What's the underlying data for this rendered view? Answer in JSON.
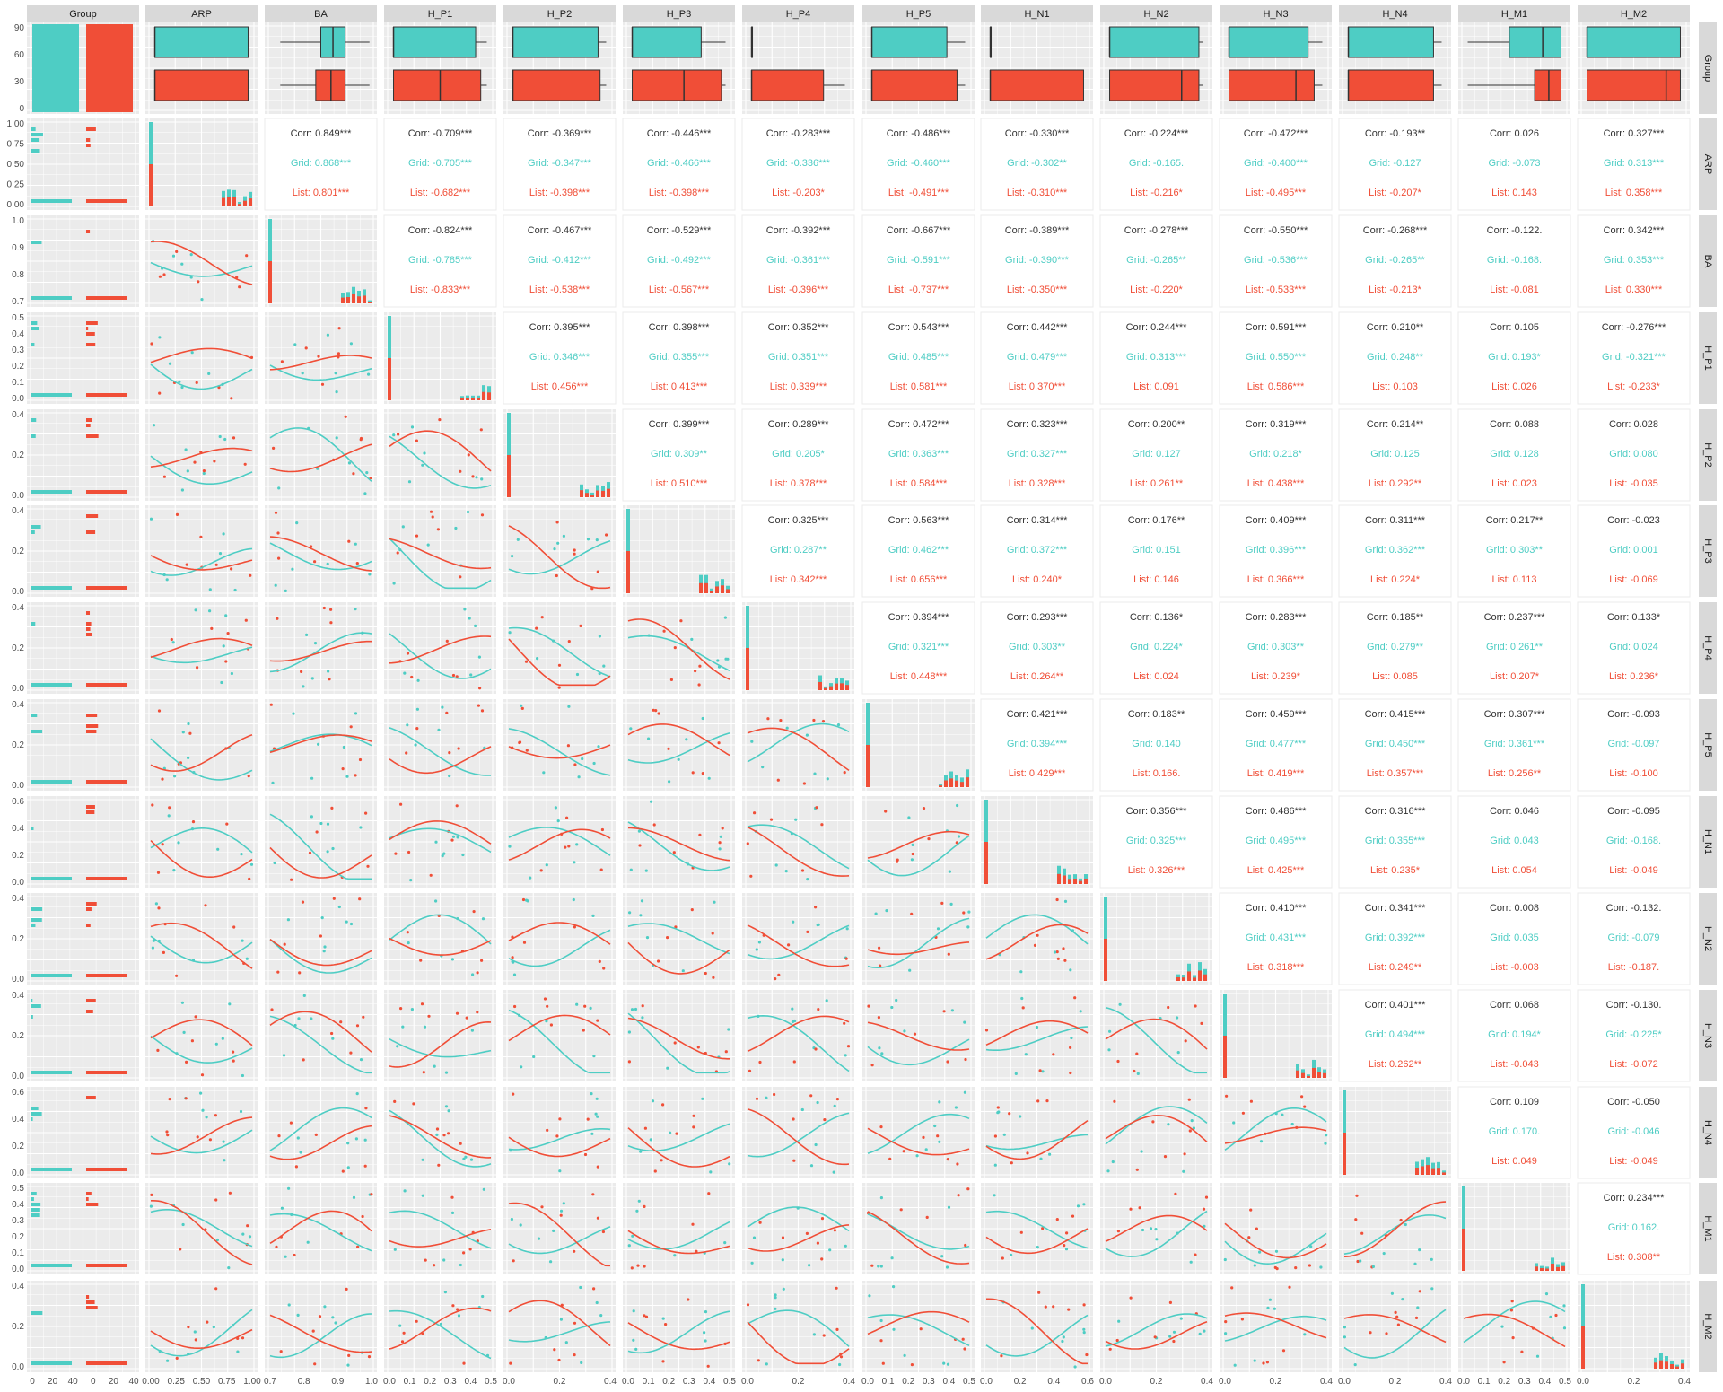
{
  "chart_data": {
    "type": "scatter-matrix",
    "variables": [
      "Group",
      "ARP",
      "BA",
      "H_P1",
      "H_P2",
      "H_P3",
      "H_P4",
      "H_P5",
      "H_N1",
      "H_N2",
      "H_N3",
      "H_N4",
      "H_M1",
      "H_M2"
    ],
    "groups": [
      {
        "name": "Grid",
        "color": "#4ECDC4"
      },
      {
        "name": "List",
        "color": "#F04E37"
      }
    ],
    "overall_label": "Corr",
    "colors": {
      "panel_bg": "#EBEBEB",
      "grid": "#FFFFFF",
      "strip_bg": "#D9D9D9",
      "text": "#333333"
    },
    "column_ticks": [
      [
        "0",
        "20",
        "40",
        "0",
        "20",
        "40"
      ],
      [
        "0.00",
        "0.25",
        "0.50",
        "0.75",
        "1.00"
      ],
      [
        "0.7",
        "0.8",
        "0.9",
        "1.0"
      ],
      [
        "0.0",
        "0.1",
        "0.2",
        "0.3",
        "0.4",
        "0.5"
      ],
      [
        "0.0",
        "0.2",
        "0.4"
      ],
      [
        "0.0",
        "0.1",
        "0.2",
        "0.3",
        "0.4",
        "0.5"
      ],
      [
        "0.0",
        "0.2",
        "0.4"
      ],
      [
        "0.0",
        "0.1",
        "0.2",
        "0.3",
        "0.4",
        "0.5"
      ],
      [
        "0.0",
        "0.2",
        "0.4",
        "0.6"
      ],
      [
        "0.0",
        "0.2",
        "0.4"
      ],
      [
        "0.0",
        "0.2",
        "0.4"
      ],
      [
        "0.0",
        "0.2",
        "0.4"
      ],
      [
        "0.0",
        "0.1",
        "0.2",
        "0.3",
        "0.4",
        "0.5"
      ],
      [
        "0.0",
        "0.2",
        "0.4"
      ]
    ],
    "row_ticks": [
      [
        "0",
        "30",
        "60",
        "90"
      ],
      [
        "0.00",
        "0.25",
        "0.50",
        "0.75",
        "1.00"
      ],
      [
        "0.7",
        "0.8",
        "0.9",
        "1.0"
      ],
      [
        "0.0",
        "0.1",
        "0.2",
        "0.3",
        "0.4",
        "0.5"
      ],
      [
        "0.0",
        "0.2",
        "0.4"
      ],
      [
        "0.0",
        "0.2",
        "0.4"
      ],
      [
        "0.0",
        "0.2",
        "0.4"
      ],
      [
        "0.0",
        "0.2",
        "0.4"
      ],
      [
        "0.0",
        "0.2",
        "0.4",
        "0.6"
      ],
      [
        "0.0",
        "0.2",
        "0.4"
      ],
      [
        "0.0",
        "0.2",
        "0.4"
      ],
      [
        "0.0",
        "0.2",
        "0.4",
        "0.6"
      ],
      [
        "0.0",
        "0.1",
        "0.2",
        "0.3",
        "0.4",
        "0.5"
      ],
      [
        "0.0",
        "0.2",
        "0.4"
      ]
    ],
    "correlations": [
      {
        "row": "ARP",
        "col": "BA",
        "Corr": "0.849***",
        "Grid": "0.868***",
        "List": "0.801***"
      },
      {
        "row": "ARP",
        "col": "H_P1",
        "Corr": "-0.709***",
        "Grid": "-0.705***",
        "List": "-0.682***"
      },
      {
        "row": "ARP",
        "col": "H_P2",
        "Corr": "-0.369***",
        "Grid": "-0.347***",
        "List": "-0.398***"
      },
      {
        "row": "ARP",
        "col": "H_P3",
        "Corr": "-0.446***",
        "Grid": "-0.466***",
        "List": "-0.398***"
      },
      {
        "row": "ARP",
        "col": "H_P4",
        "Corr": "-0.283***",
        "Grid": "-0.336***",
        "List": "-0.203*"
      },
      {
        "row": "ARP",
        "col": "H_P5",
        "Corr": "-0.486***",
        "Grid": "-0.460***",
        "List": "-0.491***"
      },
      {
        "row": "ARP",
        "col": "H_N1",
        "Corr": "-0.330***",
        "Grid": "-0.302**",
        "List": "-0.310***"
      },
      {
        "row": "ARP",
        "col": "H_N2",
        "Corr": "-0.224***",
        "Grid": "-0.165.",
        "List": "-0.216*"
      },
      {
        "row": "ARP",
        "col": "H_N3",
        "Corr": "-0.472***",
        "Grid": "-0.400***",
        "List": "-0.495***"
      },
      {
        "row": "ARP",
        "col": "H_N4",
        "Corr": "-0.193**",
        "Grid": "-0.127",
        "List": "-0.207*"
      },
      {
        "row": "ARP",
        "col": "H_M1",
        "Corr": "0.026",
        "Grid": "-0.073",
        "List": "0.143"
      },
      {
        "row": "ARP",
        "col": "H_M2",
        "Corr": "0.327***",
        "Grid": "0.313***",
        "List": "0.358***"
      },
      {
        "row": "BA",
        "col": "H_P1",
        "Corr": "-0.824***",
        "Grid": "-0.785***",
        "List": "-0.833***"
      },
      {
        "row": "BA",
        "col": "H_P2",
        "Corr": "-0.467***",
        "Grid": "-0.412***",
        "List": "-0.538***"
      },
      {
        "row": "BA",
        "col": "H_P3",
        "Corr": "-0.529***",
        "Grid": "-0.492***",
        "List": "-0.567***"
      },
      {
        "row": "BA",
        "col": "H_P4",
        "Corr": "-0.392***",
        "Grid": "-0.361***",
        "List": "-0.396***"
      },
      {
        "row": "BA",
        "col": "H_P5",
        "Corr": "-0.667***",
        "Grid": "-0.591***",
        "List": "-0.737***"
      },
      {
        "row": "BA",
        "col": "H_N1",
        "Corr": "-0.389***",
        "Grid": "-0.390***",
        "List": "-0.350***"
      },
      {
        "row": "BA",
        "col": "H_N2",
        "Corr": "-0.278***",
        "Grid": "-0.265**",
        "List": "-0.220*"
      },
      {
        "row": "BA",
        "col": "H_N3",
        "Corr": "-0.550***",
        "Grid": "-0.536***",
        "List": "-0.533***"
      },
      {
        "row": "BA",
        "col": "H_N4",
        "Corr": "-0.268***",
        "Grid": "-0.265**",
        "List": "-0.213*"
      },
      {
        "row": "BA",
        "col": "H_M1",
        "Corr": "-0.122.",
        "Grid": "-0.168.",
        "List": "-0.081"
      },
      {
        "row": "BA",
        "col": "H_M2",
        "Corr": "0.342***",
        "Grid": "0.353***",
        "List": "0.330***"
      },
      {
        "row": "H_P1",
        "col": "H_P2",
        "Corr": "0.395***",
        "Grid": "0.346***",
        "List": "0.456***"
      },
      {
        "row": "H_P1",
        "col": "H_P3",
        "Corr": "0.398***",
        "Grid": "0.355***",
        "List": "0.413***"
      },
      {
        "row": "H_P1",
        "col": "H_P4",
        "Corr": "0.352***",
        "Grid": "0.351***",
        "List": "0.339***"
      },
      {
        "row": "H_P1",
        "col": "H_P5",
        "Corr": "0.543***",
        "Grid": "0.485***",
        "List": "0.581***"
      },
      {
        "row": "H_P1",
        "col": "H_N1",
        "Corr": "0.442***",
        "Grid": "0.479***",
        "List": "0.370***"
      },
      {
        "row": "H_P1",
        "col": "H_N2",
        "Corr": "0.244***",
        "Grid": "0.313***",
        "List": "0.091"
      },
      {
        "row": "H_P1",
        "col": "H_N3",
        "Corr": "0.591***",
        "Grid": "0.550***",
        "List": "0.586***"
      },
      {
        "row": "H_P1",
        "col": "H_N4",
        "Corr": "0.210**",
        "Grid": "0.248**",
        "List": "0.103"
      },
      {
        "row": "H_P1",
        "col": "H_M1",
        "Corr": "0.105",
        "Grid": "0.193*",
        "List": "0.026"
      },
      {
        "row": "H_P1",
        "col": "H_M2",
        "Corr": "-0.276***",
        "Grid": "-0.321***",
        "List": "-0.233*"
      },
      {
        "row": "H_P2",
        "col": "H_P3",
        "Corr": "0.399***",
        "Grid": "0.309**",
        "List": "0.510***"
      },
      {
        "row": "H_P2",
        "col": "H_P4",
        "Corr": "0.289***",
        "Grid": "0.205*",
        "List": "0.378***"
      },
      {
        "row": "H_P2",
        "col": "H_P5",
        "Corr": "0.472***",
        "Grid": "0.363***",
        "List": "0.584***"
      },
      {
        "row": "H_P2",
        "col": "H_N1",
        "Corr": "0.323***",
        "Grid": "0.327***",
        "List": "0.328***"
      },
      {
        "row": "H_P2",
        "col": "H_N2",
        "Corr": "0.200**",
        "Grid": "0.127",
        "List": "0.261**"
      },
      {
        "row": "H_P2",
        "col": "H_N3",
        "Corr": "0.319***",
        "Grid": "0.218*",
        "List": "0.438***"
      },
      {
        "row": "H_P2",
        "col": "H_N4",
        "Corr": "0.214**",
        "Grid": "0.125",
        "List": "0.292**"
      },
      {
        "row": "H_P2",
        "col": "H_M1",
        "Corr": "0.088",
        "Grid": "0.128",
        "List": "0.023"
      },
      {
        "row": "H_P2",
        "col": "H_M2",
        "Corr": "0.028",
        "Grid": "0.080",
        "List": "-0.035"
      },
      {
        "row": "H_P3",
        "col": "H_P4",
        "Corr": "0.325***",
        "Grid": "0.287**",
        "List": "0.342***"
      },
      {
        "row": "H_P3",
        "col": "H_P5",
        "Corr": "0.563***",
        "Grid": "0.462***",
        "List": "0.656***"
      },
      {
        "row": "H_P3",
        "col": "H_N1",
        "Corr": "0.314***",
        "Grid": "0.372***",
        "List": "0.240*"
      },
      {
        "row": "H_P3",
        "col": "H_N2",
        "Corr": "0.176**",
        "Grid": "0.151",
        "List": "0.146"
      },
      {
        "row": "H_P3",
        "col": "H_N3",
        "Corr": "0.409***",
        "Grid": "0.396***",
        "List": "0.366***"
      },
      {
        "row": "H_P3",
        "col": "H_N4",
        "Corr": "0.311***",
        "Grid": "0.362***",
        "List": "0.224*"
      },
      {
        "row": "H_P3",
        "col": "H_M1",
        "Corr": "0.217**",
        "Grid": "0.303**",
        "List": "0.113"
      },
      {
        "row": "H_P3",
        "col": "H_M2",
        "Corr": "-0.023",
        "Grid": "0.001",
        "List": "-0.069"
      },
      {
        "row": "H_P4",
        "col": "H_P5",
        "Corr": "0.394***",
        "Grid": "0.321***",
        "List": "0.448***"
      },
      {
        "row": "H_P4",
        "col": "H_N1",
        "Corr": "0.293***",
        "Grid": "0.303**",
        "List": "0.264**"
      },
      {
        "row": "H_P4",
        "col": "H_N2",
        "Corr": "0.136*",
        "Grid": "0.224*",
        "List": "0.024"
      },
      {
        "row": "H_P4",
        "col": "H_N3",
        "Corr": "0.283***",
        "Grid": "0.303**",
        "List": "0.239*"
      },
      {
        "row": "H_P4",
        "col": "H_N4",
        "Corr": "0.185**",
        "Grid": "0.279**",
        "List": "0.085"
      },
      {
        "row": "H_P4",
        "col": "H_M1",
        "Corr": "0.237***",
        "Grid": "0.261**",
        "List": "0.207*"
      },
      {
        "row": "H_P4",
        "col": "H_M2",
        "Corr": "0.133*",
        "Grid": "0.024",
        "List": "0.236*"
      },
      {
        "row": "H_P5",
        "col": "H_N1",
        "Corr": "0.421***",
        "Grid": "0.394***",
        "List": "0.429***"
      },
      {
        "row": "H_P5",
        "col": "H_N2",
        "Corr": "0.183**",
        "Grid": "0.140",
        "List": "0.166."
      },
      {
        "row": "H_P5",
        "col": "H_N3",
        "Corr": "0.459***",
        "Grid": "0.477***",
        "List": "0.419***"
      },
      {
        "row": "H_P5",
        "col": "H_N4",
        "Corr": "0.415***",
        "Grid": "0.450***",
        "List": "0.357***"
      },
      {
        "row": "H_P5",
        "col": "H_M1",
        "Corr": "0.307***",
        "Grid": "0.361***",
        "List": "0.256**"
      },
      {
        "row": "H_P5",
        "col": "H_M2",
        "Corr": "-0.093",
        "Grid": "-0.097",
        "List": "-0.100"
      },
      {
        "row": "H_N1",
        "col": "H_N2",
        "Corr": "0.356***",
        "Grid": "0.325***",
        "List": "0.326***"
      },
      {
        "row": "H_N1",
        "col": "H_N3",
        "Corr": "0.486***",
        "Grid": "0.495***",
        "List": "0.425***"
      },
      {
        "row": "H_N1",
        "col": "H_N4",
        "Corr": "0.316***",
        "Grid": "0.355***",
        "List": "0.235*"
      },
      {
        "row": "H_N1",
        "col": "H_M1",
        "Corr": "0.046",
        "Grid": "0.043",
        "List": "0.054"
      },
      {
        "row": "H_N1",
        "col": "H_M2",
        "Corr": "-0.095",
        "Grid": "-0.168.",
        "List": "-0.049"
      },
      {
        "row": "H_N2",
        "col": "H_N3",
        "Corr": "0.410***",
        "Grid": "0.431***",
        "List": "0.318***"
      },
      {
        "row": "H_N2",
        "col": "H_N4",
        "Corr": "0.341***",
        "Grid": "0.392***",
        "List": "0.249**"
      },
      {
        "row": "H_N2",
        "col": "H_M1",
        "Corr": "0.008",
        "Grid": "0.035",
        "List": "-0.003"
      },
      {
        "row": "H_N2",
        "col": "H_M2",
        "Corr": "-0.132.",
        "Grid": "-0.079",
        "List": "-0.187."
      },
      {
        "row": "H_N3",
        "col": "H_N4",
        "Corr": "0.401***",
        "Grid": "0.494***",
        "List": "0.262**"
      },
      {
        "row": "H_N3",
        "col": "H_M1",
        "Corr": "0.068",
        "Grid": "0.194*",
        "List": "-0.043"
      },
      {
        "row": "H_N3",
        "col": "H_M2",
        "Corr": "-0.130.",
        "Grid": "-0.225*",
        "List": "-0.072"
      },
      {
        "row": "H_N4",
        "col": "H_M1",
        "Corr": "0.109",
        "Grid": "0.170.",
        "List": "0.049"
      },
      {
        "row": "H_N4",
        "col": "H_M2",
        "Corr": "-0.050",
        "Grid": "-0.046",
        "List": "-0.049"
      },
      {
        "row": "H_M1",
        "col": "H_M2",
        "Corr": "0.234***",
        "Grid": "0.162.",
        "List": "0.308**"
      }
    ],
    "group_boxplots": [
      {
        "var": "ARP",
        "Grid": [
          0.04,
          0.04,
          0.04,
          0.96,
          0.96
        ],
        "List": [
          0.04,
          0.04,
          0.04,
          0.96,
          0.96
        ]
      },
      {
        "var": "BA",
        "Grid": [
          0.1,
          0.5,
          0.62,
          0.74,
          0.98
        ],
        "List": [
          0.1,
          0.45,
          0.6,
          0.74,
          0.98
        ]
      },
      {
        "var": "H_P1",
        "Grid": [
          0.04,
          0.04,
          0.04,
          0.85,
          0.96
        ],
        "List": [
          0.04,
          0.04,
          0.5,
          0.9,
          0.96
        ]
      },
      {
        "var": "H_P2",
        "Grid": [
          0.04,
          0.04,
          0.04,
          0.88,
          0.96
        ],
        "List": [
          0.04,
          0.04,
          0.04,
          0.9,
          0.96
        ]
      },
      {
        "var": "H_P3",
        "Grid": [
          0.04,
          0.04,
          0.04,
          0.72,
          0.96
        ],
        "List": [
          0.04,
          0.04,
          0.55,
          0.92,
          0.96
        ]
      },
      {
        "var": "H_P4",
        "Grid": [
          0.04,
          0.04,
          0.04,
          0.04,
          0.04
        ],
        "List": [
          0.04,
          0.04,
          0.04,
          0.75,
          0.96
        ]
      },
      {
        "var": "H_P5",
        "Grid": [
          0.04,
          0.04,
          0.04,
          0.78,
          0.96
        ],
        "List": [
          0.04,
          0.04,
          0.04,
          0.88,
          0.96
        ]
      },
      {
        "var": "H_N1",
        "Grid": [
          0.04,
          0.04,
          0.04,
          0.04,
          0.04
        ],
        "List": [
          0.04,
          0.04,
          0.04,
          0.96,
          0.96
        ]
      },
      {
        "var": "H_N2",
        "Grid": [
          0.04,
          0.04,
          0.04,
          0.92,
          0.96
        ],
        "List": [
          0.04,
          0.04,
          0.75,
          0.92,
          0.96
        ]
      },
      {
        "var": "H_N3",
        "Grid": [
          0.04,
          0.04,
          0.04,
          0.82,
          0.96
        ],
        "List": [
          0.04,
          0.04,
          0.7,
          0.88,
          0.96
        ]
      },
      {
        "var": "H_N4",
        "Grid": [
          0.04,
          0.04,
          0.04,
          0.88,
          0.96
        ],
        "List": [
          0.04,
          0.04,
          0.04,
          0.88,
          0.96
        ]
      },
      {
        "var": "H_M1",
        "Grid": [
          0.04,
          0.45,
          0.78,
          0.96,
          0.96
        ],
        "List": [
          0.04,
          0.7,
          0.84,
          0.96,
          0.96
        ]
      },
      {
        "var": "H_M2",
        "Grid": [
          0.04,
          0.04,
          0.04,
          0.96,
          0.96
        ],
        "List": [
          0.04,
          0.04,
          0.82,
          0.96,
          0.96
        ]
      }
    ]
  }
}
